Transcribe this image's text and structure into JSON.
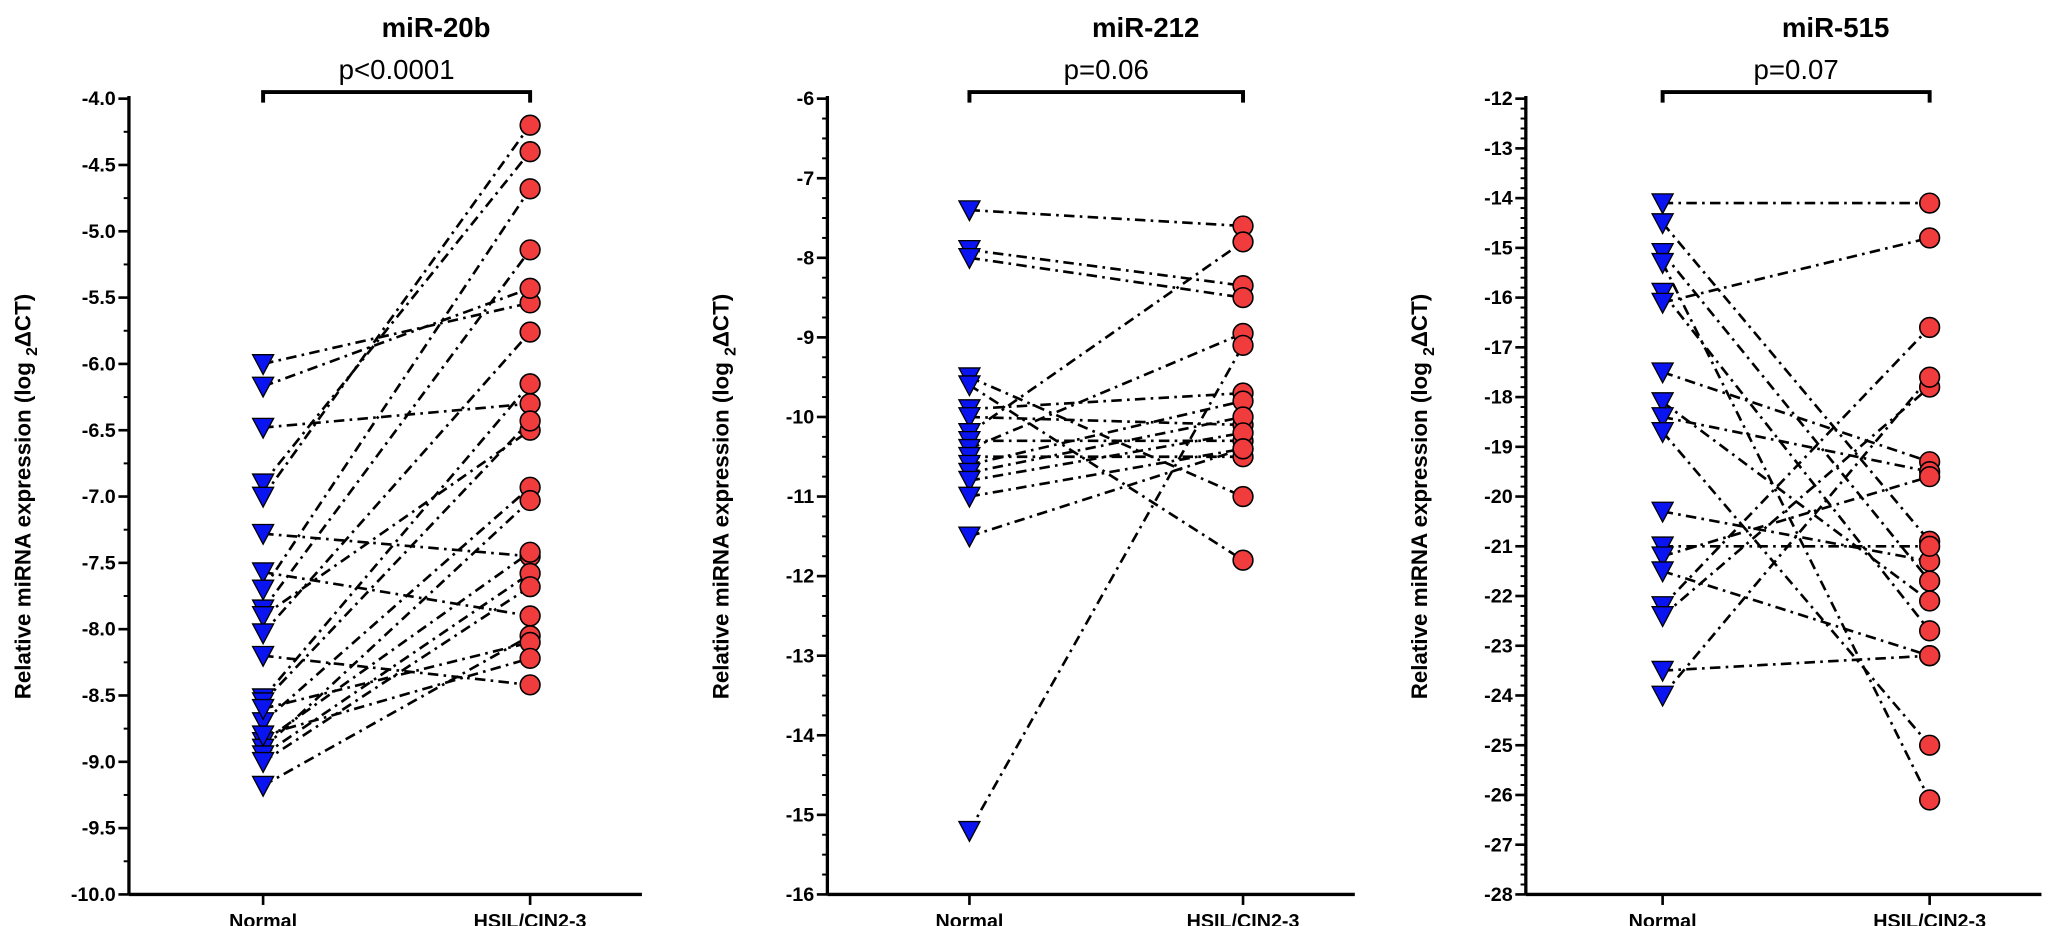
{
  "colors": {
    "normal": "#0a14f0",
    "hsil": "#f03c3c",
    "line": "#000000"
  },
  "ylabel": {
    "main": "Relative miRNA expression (log ",
    "sub": "2",
    "tail": "ΔCT)"
  },
  "chart_data": [
    {
      "type": "scatter",
      "connected_pairs": true,
      "title": "miR-20b",
      "annotation": "p<0.0001",
      "categories": [
        "Normal",
        "HSIL/CIN2-3"
      ],
      "ylim": [
        -10.0,
        -4.0
      ],
      "yticks": [
        "-4.0",
        "-4.5",
        "-5.0",
        "-5.5",
        "-6.0",
        "-6.5",
        "-7.0",
        "-7.5",
        "-8.0",
        "-8.5",
        "-9.0",
        "-9.5",
        "-10.0"
      ],
      "normal": [
        -6.0,
        -6.17,
        -6.48,
        -6.9,
        -7.0,
        -7.28,
        -7.57,
        -7.7,
        -7.85,
        -7.9,
        -8.03,
        -8.2,
        -8.52,
        -8.55,
        -8.7,
        -8.85,
        -8.9,
        -8.95,
        -9.0,
        -9.18,
        -8.6,
        -8.8
      ],
      "hsil": [
        -5.54,
        -5.43,
        -6.3,
        -4.4,
        -4.2,
        -7.45,
        -7.9,
        -4.68,
        -5.14,
        -6.5,
        -5.76,
        -8.42,
        -6.15,
        -6.43,
        -6.93,
        -7.42,
        -7.03,
        -7.58,
        -7.68,
        -8.05,
        -8.1,
        -8.22
      ]
    },
    {
      "type": "scatter",
      "connected_pairs": true,
      "title": "miR-212",
      "annotation": "p=0.06",
      "categories": [
        "Normal",
        "HSIL/CIN2-3"
      ],
      "ylim": [
        -16,
        -6
      ],
      "yticks": [
        "-6",
        "-7",
        "-8",
        "-9",
        "-10",
        "-11",
        "-12",
        "-13",
        "-14",
        "-15",
        "-16"
      ],
      "normal": [
        -7.4,
        -7.9,
        -8.0,
        -9.5,
        -9.6,
        -9.9,
        -10.0,
        -10.2,
        -10.3,
        -10.4,
        -10.5,
        -10.6,
        -10.7,
        -10.8,
        -11.0,
        -11.5,
        -15.2
      ],
      "hsil": [
        -7.6,
        -8.35,
        -8.5,
        -11.0,
        -11.8,
        -9.7,
        -10.1,
        -7.8,
        -10.3,
        -8.95,
        -10.5,
        -9.8,
        -10.0,
        -10.2,
        -10.4,
        -10.4,
        -9.1
      ]
    },
    {
      "type": "scatter",
      "connected_pairs": true,
      "title": "miR-515",
      "annotation": "p=0.07",
      "categories": [
        "Normal",
        "HSIL/CIN2-3"
      ],
      "ylim": [
        -28,
        -12
      ],
      "yticks": [
        "-12",
        "-13",
        "-14",
        "-15",
        "-16",
        "-17",
        "-18",
        "-19",
        "-20",
        "-21",
        "-22",
        "-23",
        "-24",
        "-25",
        "-26",
        "-27",
        "-28"
      ],
      "normal": [
        -14.1,
        -14.5,
        -15.1,
        -15.3,
        -15.9,
        -16.1,
        -17.5,
        -18.1,
        -18.4,
        -18.7,
        -20.3,
        -21.0,
        -21.2,
        -21.5,
        -22.2,
        -22.4,
        -23.5,
        -24.0
      ],
      "hsil": [
        -14.1,
        -20.9,
        -21.7,
        -26.1,
        -22.7,
        -14.8,
        -19.3,
        -22.1,
        -19.5,
        -25.0,
        -21.3,
        -21.0,
        -19.6,
        -23.2,
        -16.6,
        -17.8,
        -23.2,
        -17.6
      ]
    }
  ]
}
